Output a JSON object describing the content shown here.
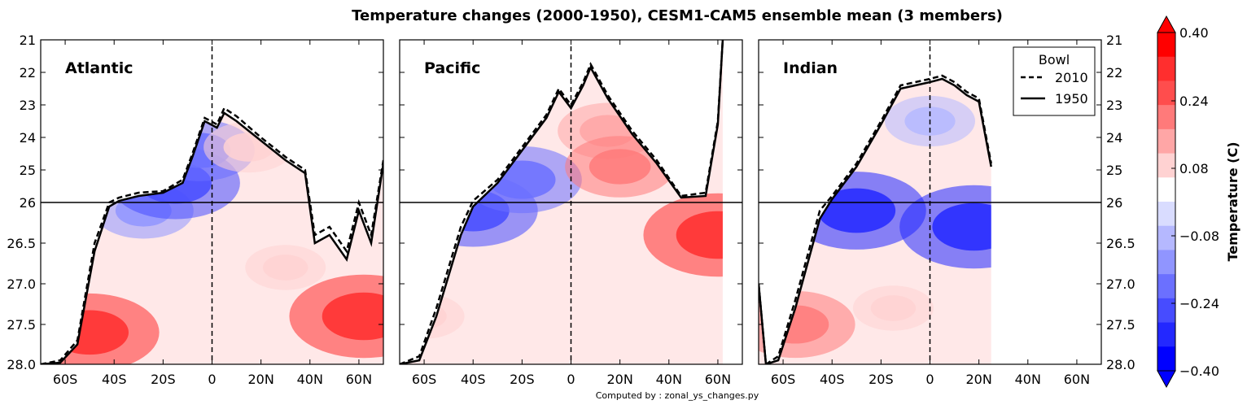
{
  "chart_data": {
    "type": "heatmap",
    "title": "Temperature changes (2000-1950), CESM1-CAM5 ensemble mean (3 members)",
    "credit": "Computed by : zonal_ys_changes.py",
    "x_ticks": [
      "60S",
      "40S",
      "20S",
      "0",
      "20N",
      "40N",
      "60N"
    ],
    "x_tick_values": [
      -60,
      -40,
      -20,
      0,
      20,
      40,
      60
    ],
    "xlim": [
      -70,
      70
    ],
    "y_ticks": [
      "21",
      "22",
      "23",
      "24",
      "25",
      "26",
      "26.5",
      "27.0",
      "27.5",
      "28.0"
    ],
    "y_axis_inverted": true,
    "reference_line_y": "26",
    "reference_line_x": 0,
    "panels": [
      {
        "label": "Atlantic",
        "bowl_2010": [
          [
            -70,
            28.0
          ],
          [
            -62,
            27.95
          ],
          [
            -55,
            27.7
          ],
          [
            -48,
            26.5
          ],
          [
            -42,
            26.0
          ],
          [
            -38,
            25.85
          ],
          [
            -30,
            25.7
          ],
          [
            -20,
            25.65
          ],
          [
            -12,
            25.3
          ],
          [
            -8,
            24.5
          ],
          [
            -3,
            23.4
          ],
          [
            2,
            23.6
          ],
          [
            5,
            23.1
          ],
          [
            10,
            23.35
          ],
          [
            20,
            24.0
          ],
          [
            30,
            24.6
          ],
          [
            38,
            25.0
          ],
          [
            42,
            26.4
          ],
          [
            48,
            26.3
          ],
          [
            55,
            26.6
          ],
          [
            60,
            26.0
          ],
          [
            65,
            26.4
          ],
          [
            70,
            24.7
          ]
        ],
        "bowl_1950": [
          [
            -70,
            28.0
          ],
          [
            -62,
            27.98
          ],
          [
            -55,
            27.75
          ],
          [
            -48,
            26.6
          ],
          [
            -42,
            26.05
          ],
          [
            -38,
            25.95
          ],
          [
            -30,
            25.8
          ],
          [
            -20,
            25.7
          ],
          [
            -12,
            25.4
          ],
          [
            -8,
            24.6
          ],
          [
            -3,
            23.5
          ],
          [
            2,
            23.7
          ],
          [
            5,
            23.25
          ],
          [
            10,
            23.5
          ],
          [
            20,
            24.1
          ],
          [
            30,
            24.7
          ],
          [
            38,
            25.1
          ],
          [
            42,
            26.5
          ],
          [
            48,
            26.4
          ],
          [
            55,
            26.7
          ],
          [
            60,
            26.1
          ],
          [
            65,
            26.5
          ],
          [
            70,
            24.8
          ]
        ],
        "anomaly_patches": [
          {
            "x": -50,
            "y": "27.6",
            "value": 0.32
          },
          {
            "x": -28,
            "y": "26.1",
            "value": -0.16
          },
          {
            "x": -15,
            "y": "25.4",
            "value": -0.28
          },
          {
            "x": -5,
            "y": "24.4",
            "value": -0.2
          },
          {
            "x": 15,
            "y": "24.3",
            "value": 0.12
          },
          {
            "x": 30,
            "y": "26.8",
            "value": 0.08
          },
          {
            "x": 62,
            "y": "27.4",
            "value": 0.36
          }
        ]
      },
      {
        "label": "Pacific",
        "bowl_2010": [
          [
            -70,
            28.0
          ],
          [
            -62,
            27.9
          ],
          [
            -55,
            27.3
          ],
          [
            -45,
            26.3
          ],
          [
            -40,
            25.95
          ],
          [
            -30,
            25.3
          ],
          [
            -20,
            24.3
          ],
          [
            -10,
            23.3
          ],
          [
            -5,
            22.5
          ],
          [
            0,
            23.0
          ],
          [
            5,
            22.3
          ],
          [
            8,
            21.75
          ],
          [
            15,
            22.7
          ],
          [
            25,
            23.8
          ],
          [
            35,
            24.7
          ],
          [
            45,
            25.8
          ],
          [
            55,
            25.7
          ],
          [
            60,
            23.5
          ],
          [
            62,
            21.0
          ]
        ],
        "bowl_1950": [
          [
            -70,
            28.0
          ],
          [
            -62,
            27.95
          ],
          [
            -55,
            27.4
          ],
          [
            -45,
            26.4
          ],
          [
            -40,
            26.05
          ],
          [
            -30,
            25.4
          ],
          [
            -20,
            24.4
          ],
          [
            -10,
            23.4
          ],
          [
            -5,
            22.6
          ],
          [
            0,
            23.1
          ],
          [
            5,
            22.4
          ],
          [
            8,
            21.85
          ],
          [
            15,
            22.8
          ],
          [
            25,
            23.9
          ],
          [
            35,
            24.8
          ],
          [
            45,
            25.85
          ],
          [
            55,
            25.8
          ],
          [
            60,
            23.6
          ],
          [
            62,
            21.0
          ]
        ],
        "anomaly_patches": [
          {
            "x": -40,
            "y": "26.1",
            "value": -0.28
          },
          {
            "x": -20,
            "y": "25.3",
            "value": -0.24
          },
          {
            "x": 15,
            "y": "23.8",
            "value": 0.16
          },
          {
            "x": 20,
            "y": "24.9",
            "value": 0.2
          },
          {
            "x": 60,
            "y": "26.4",
            "value": 0.36
          },
          {
            "x": -60,
            "y": "27.4",
            "value": 0.08
          }
        ]
      },
      {
        "label": "Indian",
        "bowl_2010": [
          [
            -70,
            27.0
          ],
          [
            -67,
            28.0
          ],
          [
            -62,
            27.9
          ],
          [
            -55,
            27.2
          ],
          [
            -45,
            26.1
          ],
          [
            -40,
            25.8
          ],
          [
            -30,
            24.8
          ],
          [
            -20,
            23.5
          ],
          [
            -12,
            22.4
          ],
          [
            0,
            22.2
          ],
          [
            5,
            22.1
          ],
          [
            10,
            22.3
          ],
          [
            15,
            22.6
          ],
          [
            20,
            22.8
          ],
          [
            25,
            24.8
          ]
        ],
        "bowl_1950": [
          [
            -70,
            27.0
          ],
          [
            -67,
            28.0
          ],
          [
            -62,
            27.95
          ],
          [
            -55,
            27.3
          ],
          [
            -45,
            26.2
          ],
          [
            -40,
            25.9
          ],
          [
            -30,
            24.9
          ],
          [
            -20,
            23.6
          ],
          [
            -12,
            22.5
          ],
          [
            0,
            22.3
          ],
          [
            5,
            22.2
          ],
          [
            10,
            22.4
          ],
          [
            15,
            22.7
          ],
          [
            20,
            22.9
          ],
          [
            25,
            24.9
          ]
        ],
        "anomaly_patches": [
          {
            "x": -30,
            "y": "26.1",
            "value": -0.32
          },
          {
            "x": 0,
            "y": "23.5",
            "value": -0.12
          },
          {
            "x": 18,
            "y": "26.3",
            "value": -0.36
          },
          {
            "x": -55,
            "y": "27.5",
            "value": 0.24
          },
          {
            "x": -15,
            "y": "27.3",
            "value": 0.08
          }
        ]
      }
    ],
    "legend": {
      "title": "Bowl",
      "placement": "top-right",
      "entries": [
        {
          "name": "2010",
          "style": "dashed"
        },
        {
          "name": "1950",
          "style": "solid"
        }
      ]
    },
    "colorbar": {
      "label": "Temperature (C)",
      "ticks": [
        "0.40",
        "0.24",
        "0.08",
        "−0.08",
        "−0.24",
        "−0.40"
      ],
      "levels": [
        0.4,
        0.32,
        0.24,
        0.16,
        0.08,
        -0.08,
        -0.16,
        -0.24,
        -0.32,
        -0.4
      ],
      "colors_top_to_bottom": [
        "#ff0000",
        "#ff2e2e",
        "#ff4d4d",
        "#ff7a7a",
        "#ffa6a6",
        "#ffd2d2",
        "#ffffff",
        "#d9dcff",
        "#b5b8ff",
        "#9095ff",
        "#6b70ff",
        "#474cff",
        "#2328ff",
        "#0000ff"
      ]
    }
  }
}
